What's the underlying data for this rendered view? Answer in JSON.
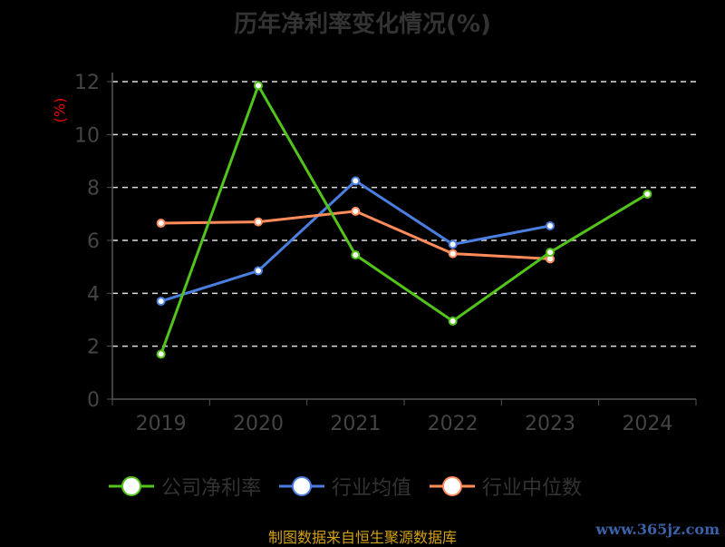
{
  "chart_data": {
    "type": "line",
    "title": "历年净利率变化情况(%)",
    "ylabel": "(%)",
    "xlabel": "",
    "categories": [
      "2019",
      "2020",
      "2021",
      "2022",
      "2023",
      "2024"
    ],
    "ylim": [
      0,
      12
    ],
    "yticks": [
      0,
      2,
      4,
      6,
      8,
      10,
      12
    ],
    "grid": true,
    "legend_position": "bottom",
    "series": [
      {
        "name": "公司净利率",
        "color": "#52c41a",
        "values": [
          1.7,
          11.85,
          5.45,
          2.95,
          5.55,
          7.75
        ]
      },
      {
        "name": "行业均值",
        "color": "#4a7fe0",
        "values": [
          3.7,
          4.85,
          8.25,
          5.85,
          6.55,
          null
        ]
      },
      {
        "name": "行业中位数",
        "color": "#ff8c5a",
        "values": [
          6.65,
          6.7,
          7.1,
          5.5,
          5.3,
          null
        ]
      }
    ]
  },
  "footer": {
    "source": "制图数据来自恒生聚源数据库",
    "watermark": "www.365jz.com"
  }
}
